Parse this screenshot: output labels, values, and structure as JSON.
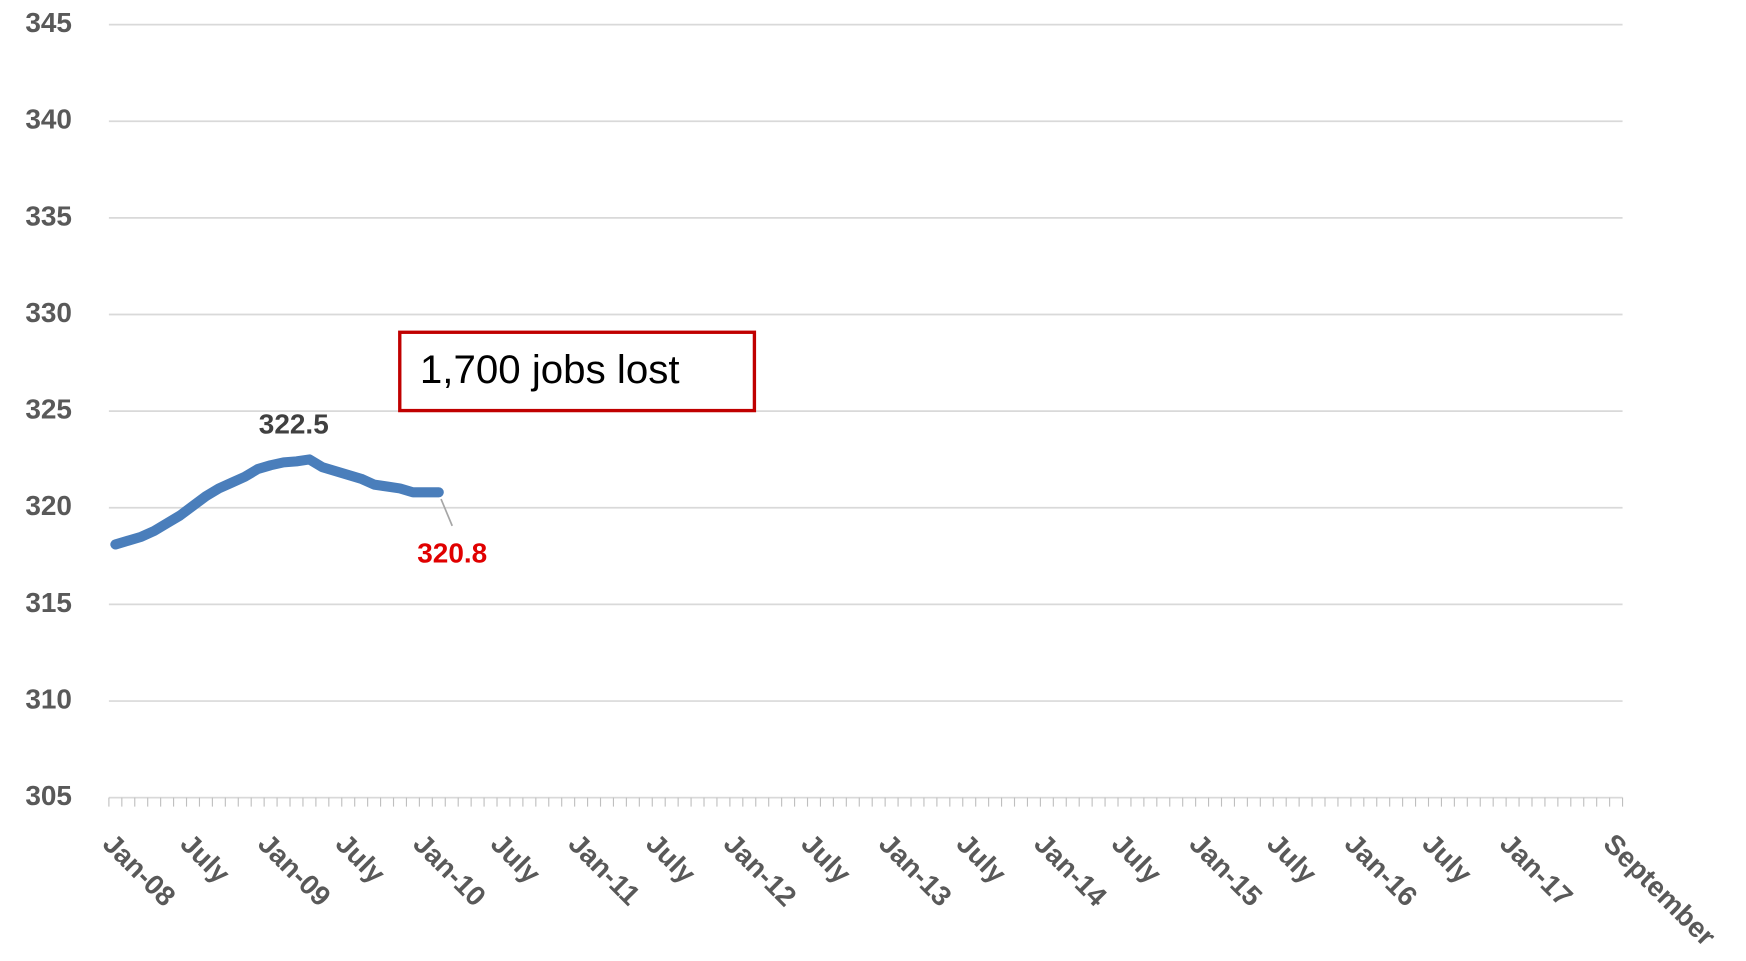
{
  "chart_data": {
    "type": "line",
    "categories": [
      "Jan-08",
      null,
      null,
      null,
      null,
      null,
      "July",
      null,
      null,
      null,
      null,
      null,
      "Jan-09",
      null,
      null,
      null,
      null,
      null,
      "July",
      null,
      null,
      null,
      null,
      null,
      "Jan-10",
      null,
      null,
      null,
      null,
      null,
      "July",
      null,
      null,
      null,
      null,
      null,
      "Jan-11",
      null,
      null,
      null,
      null,
      null,
      "July",
      null,
      null,
      null,
      null,
      null,
      "Jan-12",
      null,
      null,
      null,
      null,
      null,
      "July",
      null,
      null,
      null,
      null,
      null,
      "Jan-13",
      null,
      null,
      null,
      null,
      null,
      "July",
      null,
      null,
      null,
      null,
      null,
      "Jan-14",
      null,
      null,
      null,
      null,
      null,
      "July",
      null,
      null,
      null,
      null,
      null,
      "Jan-15",
      null,
      null,
      null,
      null,
      null,
      "July",
      null,
      null,
      null,
      null,
      null,
      "Jan-16",
      null,
      null,
      null,
      null,
      null,
      "July",
      null,
      null,
      null,
      null,
      null,
      "Jan-17",
      null,
      null,
      null,
      null,
      null,
      null,
      null,
      "September"
    ],
    "series": [
      {
        "color": "#4a7ebb",
        "values": [
          318.1,
          318.3,
          318.5,
          318.8,
          319.2,
          319.6,
          320.1,
          320.6,
          321.0,
          321.3,
          321.6,
          322.0,
          322.2,
          322.35,
          322.4,
          322.5,
          322.1,
          321.9,
          321.7,
          321.5,
          321.2,
          321.1,
          321.0,
          320.8,
          320.8,
          320.8,
          null,
          null,
          null,
          null,
          null,
          null,
          null,
          null,
          null,
          null,
          null,
          null,
          null,
          null,
          null,
          null,
          null,
          null,
          null,
          null,
          null,
          null,
          null,
          null,
          null,
          null,
          null,
          null,
          null,
          null,
          null,
          null,
          null,
          null,
          null,
          null,
          null,
          null,
          null,
          null,
          null,
          null,
          null,
          null,
          null,
          null,
          null,
          null,
          null,
          null,
          null,
          null,
          null,
          null,
          null,
          null,
          null,
          null,
          null,
          null,
          null,
          null,
          null,
          null,
          null,
          null,
          null,
          null,
          null,
          null,
          null,
          null,
          null,
          null,
          null,
          null,
          null,
          null,
          null,
          null,
          null,
          null,
          null,
          null,
          null,
          null,
          null,
          null,
          null,
          null,
          null
        ]
      }
    ],
    "data_labels": [
      {
        "index": 15,
        "color": "#404040"
      },
      {
        "index": 25,
        "color": "#e00000"
      }
    ],
    "annotations": [
      {
        "text": "1,700 jobs lost",
        "border_color": "#c00000"
      }
    ],
    "ylim": [
      305,
      345
    ],
    "yticks": [
      305,
      310,
      315,
      320,
      325,
      330,
      335,
      340,
      345
    ],
    "grid": true
  }
}
